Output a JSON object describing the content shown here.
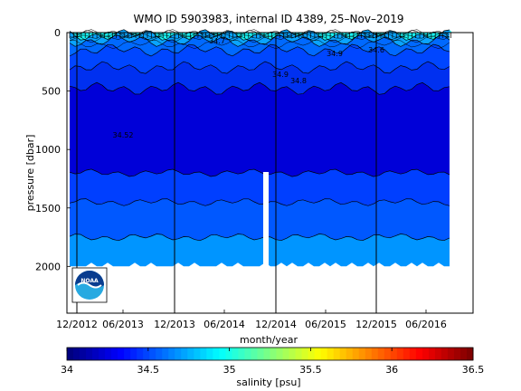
{
  "chart_data": {
    "type": "heatmap",
    "title": "WMO ID 5903983, internal ID 4389, 25–Nov–2019",
    "xlabel": "month/year",
    "ylabel": "pressure [dbar]",
    "x_ticks": [
      "12/2012",
      "06/2013",
      "12/2013",
      "06/2014",
      "12/2014",
      "06/2015",
      "12/2015",
      "06/2016"
    ],
    "y_ticks": [
      "0",
      "500",
      "1000",
      "1500",
      "2000"
    ],
    "ylim": [
      2400,
      0
    ],
    "grid": false,
    "colorbar": {
      "label": "salinity [psu]",
      "range": [
        34,
        36.5
      ],
      "ticks": [
        "34",
        "34.5",
        "35",
        "35.5",
        "36",
        "36.5"
      ]
    },
    "salinity_bands": [
      {
        "salinity": 34.95,
        "color": "#19f2f2",
        "top_dbar": 0,
        "bottom_dbar": 20
      },
      {
        "salinity": 34.8,
        "color": "#0aa4ff",
        "top_dbar": 20,
        "bottom_dbar": 70
      },
      {
        "salinity": 34.7,
        "color": "#0069ff",
        "top_dbar": 70,
        "bottom_dbar": 150
      },
      {
        "salinity": 34.6,
        "color": "#0046ff",
        "top_dbar": 150,
        "bottom_dbar": 300
      },
      {
        "salinity": 34.55,
        "color": "#0030f0",
        "top_dbar": 300,
        "bottom_dbar": 480
      },
      {
        "salinity": 34.52,
        "color": "#0000d8",
        "top_dbar": 480,
        "bottom_dbar": 1200
      },
      {
        "salinity": 34.6,
        "color": "#003fff",
        "top_dbar": 1200,
        "bottom_dbar": 1450
      },
      {
        "salinity": 34.65,
        "color": "#0058ff",
        "top_dbar": 1450,
        "bottom_dbar": 1750
      },
      {
        "salinity": 34.7,
        "color": "#0095ff",
        "top_dbar": 1750,
        "bottom_dbar": 2000
      }
    ],
    "contour_labels": [
      "34.52",
      "34.8",
      "34.9",
      "34.9",
      "34.7",
      "34.6"
    ],
    "vertical_lines": [
      "12/2012",
      "12/2013",
      "12/2014",
      "12/2015"
    ],
    "logo": {
      "text": "NOAA",
      "colors": [
        "#0a3d8f",
        "#ffffff",
        "#27a9e1"
      ]
    }
  }
}
